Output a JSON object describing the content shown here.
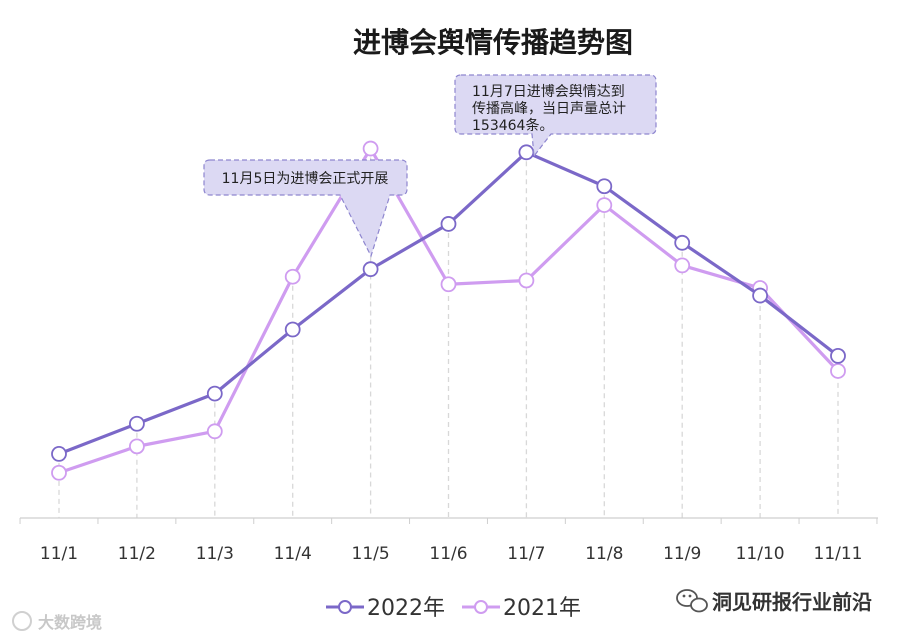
{
  "chart_data": {
    "type": "line",
    "title": "进博会舆情传播趋势图",
    "categories": [
      "11/1",
      "11/2",
      "11/3",
      "11/4",
      "11/5",
      "11/6",
      "11/7",
      "11/8",
      "11/9",
      "11/10",
      "11/11"
    ],
    "ylim": [
      0,
      100
    ],
    "grid": false,
    "xlabel": "",
    "ylabel": "",
    "legend_position": "bottom",
    "series": [
      {
        "name": "2022年",
        "color": "#7b68c8",
        "values": [
          17,
          25,
          33,
          50,
          66,
          78,
          97,
          88,
          73,
          59,
          43
        ]
      },
      {
        "name": "2021年",
        "color": "#cf9cf0",
        "values": [
          12,
          19,
          23,
          64,
          98,
          62,
          63,
          83,
          67,
          61,
          39
        ]
      }
    ],
    "annotations": [
      {
        "text": "11月5日为进博会正式开展",
        "category": "11/5",
        "series": 0
      },
      {
        "lines": [
          "11月7日进博会舆情达到",
          "传播高峰，当日声量总计",
          "153464条。"
        ],
        "category": "11/7",
        "series": 0
      }
    ]
  },
  "footer": {
    "account": "洞见研报行业前沿"
  },
  "watermark": {
    "text": "大数跨境"
  }
}
